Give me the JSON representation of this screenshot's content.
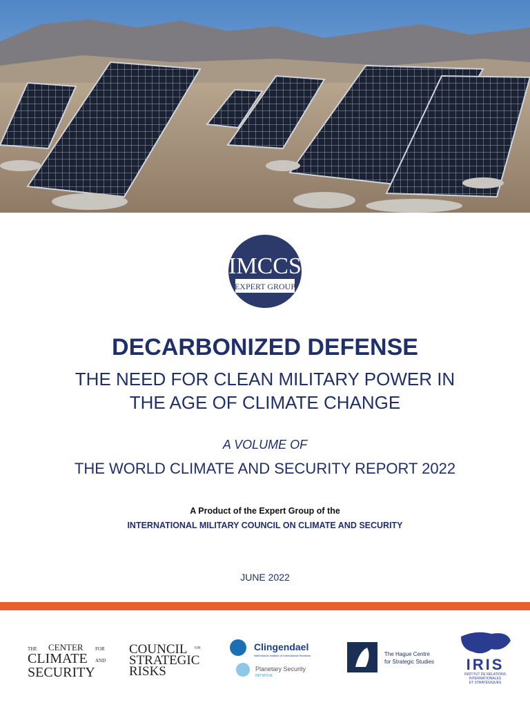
{
  "cover": {
    "logo": {
      "name": "IMCCS",
      "tagline": "EXPERT GROUP"
    },
    "title": "DECARBONIZED DEFENSE",
    "subtitle_lines": [
      "THE NEED FOR CLEAN MILITARY POWER IN",
      "THE AGE OF CLIMATE CHANGE"
    ],
    "volume_of": "A VOLUME OF",
    "report": "THE WORLD CLIMATE AND SECURITY REPORT 2022",
    "product_of": "A Product of the Expert Group of the",
    "council": "INTERNATIONAL MILITARY COUNCIL ON CLIMATE AND SECURITY",
    "date": "JUNE 2022"
  },
  "partners": {
    "ccs": {
      "the": "THE",
      "center": "CENTER",
      "for": "FOR",
      "climate": "CLIMATE",
      "and": "AND",
      "security": "SECURITY"
    },
    "csr": {
      "council": "COUNCIL",
      "on": "ON",
      "strategic": "STRATEGIC",
      "risks": "RISKS"
    },
    "clingendael": {
      "name": "Clingendael",
      "sub": "Netherlands Institute of International Relations",
      "psi": "Planetary Security",
      "psi_sub": "INITIATIVE"
    },
    "hcss": {
      "line1": "The Hague Centre",
      "line2": "for Strategic Studies"
    },
    "iris": {
      "name": "IRIS",
      "line1": "INSTITUT DE RELATIONS",
      "line2": "INTERNATIONALES",
      "line3": "ET STRATÉGIQUES"
    }
  }
}
